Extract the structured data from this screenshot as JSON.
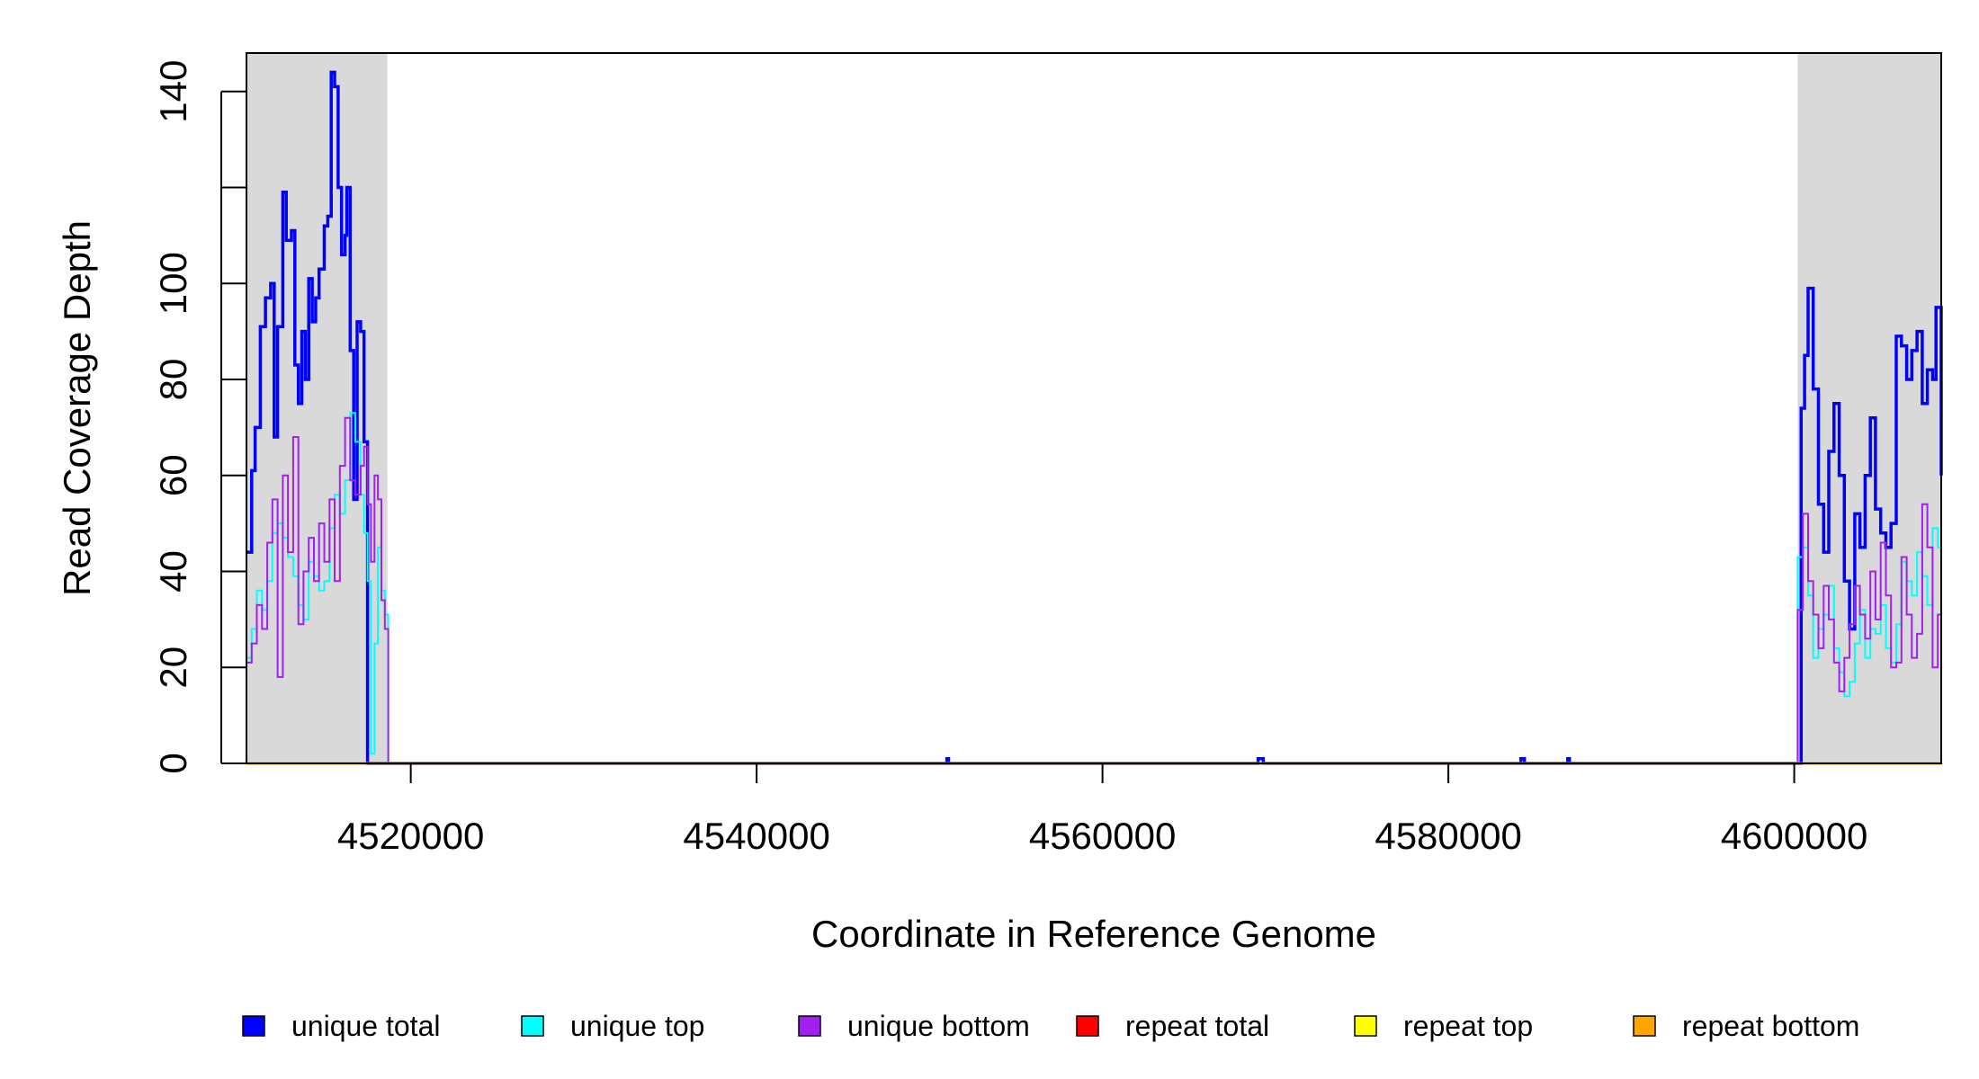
{
  "chart_data": {
    "type": "line",
    "title": "",
    "xlabel": "Coordinate in Reference Genome",
    "ylabel": "Read Coverage Depth",
    "xlim": [
      4510500,
      4608500
    ],
    "ylim": [
      0,
      148
    ],
    "x_ticks": [
      4520000,
      4540000,
      4560000,
      4580000,
      4600000
    ],
    "y_ticks": [
      0,
      20,
      40,
      60,
      80,
      100,
      120,
      140
    ],
    "y_tick_labels": [
      "0",
      "20",
      "40",
      "60",
      "80",
      "100",
      "",
      "140"
    ],
    "shaded_regions": [
      {
        "x0": 4510500,
        "x1": 4518650,
        "color": "#d9d9d9"
      },
      {
        "x0": 4600200,
        "x1": 4608500,
        "color": "#d9d9d9"
      }
    ],
    "grid": false,
    "legend_position": "bottom",
    "series": [
      {
        "name": "unique total",
        "color": "#0000ff",
        "x": [
          4510500,
          4510800,
          4511000,
          4511300,
          4511600,
          4511900,
          4512100,
          4512300,
          4512600,
          4512800,
          4513100,
          4513300,
          4513500,
          4513700,
          4513900,
          4514100,
          4514300,
          4514500,
          4514700,
          4515000,
          4515200,
          4515400,
          4515600,
          4515800,
          4516000,
          4516200,
          4516300,
          4516500,
          4516700,
          4516900,
          4517100,
          4517300,
          4517500,
          4517700,
          4517900,
          4518100,
          4518300,
          4518500,
          4518700,
          4519000,
          4550900,
          4551000,
          4551100,
          4568800,
          4569000,
          4569200,
          4569300,
          4584000,
          4584200,
          4584400,
          4586800,
          4586900,
          4587000,
          4600200,
          4600400,
          4600600,
          4600800,
          4601100,
          4601400,
          4601700,
          4602000,
          4602300,
          4602600,
          4602900,
          4603200,
          4603500,
          4603800,
          4604100,
          4604400,
          4604700,
          4605000,
          4605300,
          4605600,
          4605900,
          4606200,
          4606500,
          4606800,
          4607100,
          4607400,
          4607700,
          4608000,
          4608200,
          4608500
        ],
        "values": [
          44,
          61,
          70,
          91,
          97,
          100,
          68,
          91,
          119,
          109,
          111,
          83,
          75,
          90,
          80,
          101,
          92,
          97,
          103,
          112,
          114,
          144,
          141,
          120,
          106,
          110,
          120,
          86,
          55,
          92,
          90,
          67,
          0,
          0,
          0,
          0,
          0,
          0,
          0,
          0,
          0,
          1,
          0,
          0,
          1,
          1,
          0,
          0,
          1,
          0,
          0,
          1,
          0,
          0,
          74,
          85,
          99,
          78,
          54,
          44,
          65,
          75,
          60,
          38,
          28,
          52,
          45,
          60,
          72,
          53,
          48,
          45,
          50,
          89,
          87,
          80,
          86,
          90,
          75,
          82,
          80,
          95,
          60
        ]
      },
      {
        "name": "unique top",
        "color": "#00ffff",
        "x": [
          4510500,
          4510800,
          4511100,
          4511400,
          4511700,
          4512000,
          4512300,
          4512600,
          4512900,
          4513200,
          4513500,
          4513800,
          4514100,
          4514400,
          4514700,
          4515000,
          4515300,
          4515600,
          4515900,
          4516200,
          4516500,
          4516800,
          4517100,
          4517300,
          4517500,
          4517700,
          4517900,
          4518100,
          4518300,
          4518500,
          4518700,
          4519000,
          4600200,
          4600500,
          4600800,
          4601100,
          4601400,
          4601700,
          4602000,
          4602300,
          4602600,
          4602900,
          4603200,
          4603500,
          4603800,
          4604100,
          4604400,
          4604700,
          4605000,
          4605300,
          4605600,
          4605900,
          4606200,
          4606500,
          4606800,
          4607100,
          4607400,
          4607700,
          4608000,
          4608300,
          4608500
        ],
        "values": [
          22,
          28,
          36,
          32,
          38,
          48,
          50,
          47,
          43,
          39,
          33,
          30,
          42,
          39,
          36,
          38,
          49,
          56,
          52,
          59,
          73,
          67,
          56,
          48,
          38,
          2,
          25,
          45,
          36,
          31,
          0,
          0,
          43,
          45,
          35,
          22,
          28,
          31,
          37,
          24,
          19,
          14,
          17,
          25,
          32,
          22,
          28,
          27,
          33,
          24,
          21,
          29,
          42,
          38,
          35,
          44,
          39,
          33,
          49,
          45,
          24
        ]
      },
      {
        "name": "unique bottom",
        "color": "#a020f0",
        "x": [
          4510500,
          4510800,
          4511100,
          4511400,
          4511700,
          4512000,
          4512300,
          4512600,
          4512900,
          4513200,
          4513500,
          4513800,
          4514100,
          4514400,
          4514700,
          4515000,
          4515300,
          4515600,
          4515900,
          4516200,
          4516500,
          4516800,
          4517100,
          4517300,
          4517500,
          4517700,
          4517900,
          4518100,
          4518300,
          4518500,
          4518700,
          4519000,
          4600200,
          4600500,
          4600800,
          4601100,
          4601400,
          4601700,
          4602000,
          4602300,
          4602600,
          4602900,
          4603200,
          4603500,
          4603800,
          4604100,
          4604400,
          4604700,
          4605000,
          4605300,
          4605600,
          4605900,
          4606200,
          4606500,
          4606800,
          4607100,
          4607400,
          4607700,
          4608000,
          4608300,
          4608500
        ],
        "values": [
          21,
          25,
          33,
          28,
          46,
          55,
          18,
          60,
          44,
          68,
          29,
          40,
          47,
          38,
          50,
          42,
          55,
          38,
          62,
          72,
          59,
          56,
          62,
          66,
          54,
          42,
          60,
          55,
          34,
          28,
          0,
          0,
          32,
          52,
          38,
          31,
          24,
          37,
          30,
          21,
          15,
          22,
          29,
          37,
          31,
          26,
          40,
          30,
          46,
          35,
          20,
          21,
          43,
          31,
          22,
          27,
          54,
          45,
          20,
          31,
          57
        ]
      },
      {
        "name": "repeat total",
        "color": "#ff0000",
        "x": [
          4510500,
          4608500
        ],
        "values": [
          0,
          0
        ]
      },
      {
        "name": "repeat top",
        "color": "#ffff00",
        "x": [
          4510500,
          4608500
        ],
        "values": [
          0,
          0
        ]
      },
      {
        "name": "repeat bottom",
        "color": "#ffa500",
        "x": [
          4510500,
          4608500
        ],
        "values": [
          0,
          0
        ]
      }
    ]
  }
}
